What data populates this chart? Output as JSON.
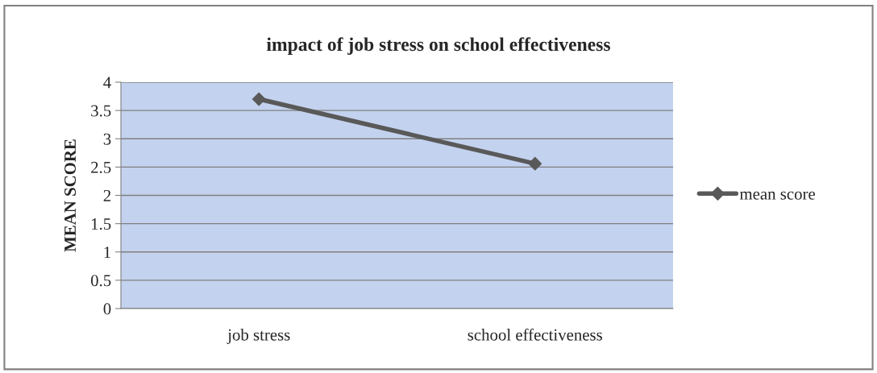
{
  "chart_data": {
    "type": "line",
    "title": "impact of job stress on school effectiveness",
    "ylabel": "MEAN SCORE",
    "categories": [
      "job stress",
      "school effectiveness"
    ],
    "series": [
      {
        "name": "mean score",
        "color": "#595959",
        "values": [
          3.7,
          2.56
        ]
      }
    ],
    "ylim": [
      0,
      4
    ],
    "yticks": [
      0,
      0.5,
      1,
      1.5,
      2,
      2.5,
      3,
      3.5,
      4
    ],
    "grid": "y",
    "legend": "right",
    "marker": "diamond",
    "line_style": "solid"
  }
}
